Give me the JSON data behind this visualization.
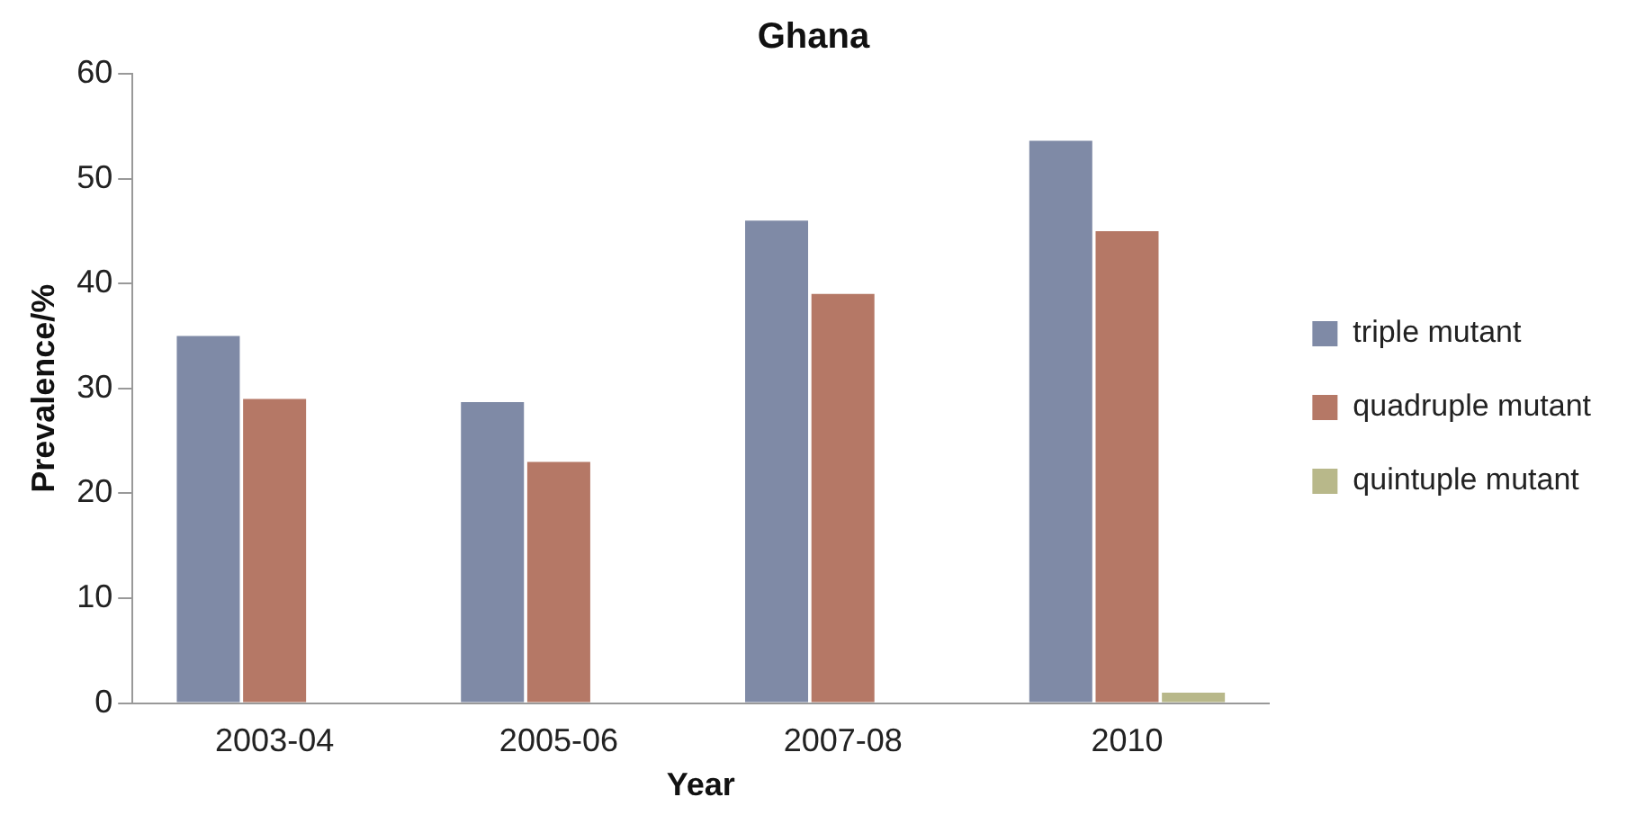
{
  "chart_data": {
    "type": "bar",
    "title": "Ghana",
    "xlabel": "Year",
    "ylabel": "Prevalence/%",
    "categories": [
      "2003-04",
      "2005-06",
      "2007-08",
      "2010"
    ],
    "series": [
      {
        "name": "triple mutant",
        "color": "#7f8aa6",
        "values": [
          35,
          28.7,
          46,
          53.6
        ]
      },
      {
        "name": "quadruple mutant",
        "color": "#b57866",
        "values": [
          29,
          23,
          39,
          45
        ]
      },
      {
        "name": "quintuple mutant",
        "color": "#b8b88a",
        "values": [
          0,
          0,
          0,
          1
        ]
      }
    ],
    "ylim": [
      0,
      60
    ],
    "yticks": [
      0,
      10,
      20,
      30,
      40,
      50,
      60
    ],
    "grid": false,
    "legend": "right"
  }
}
